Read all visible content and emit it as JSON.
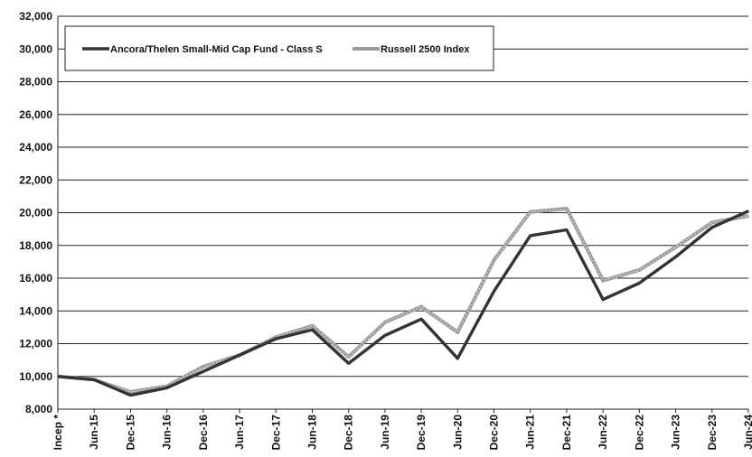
{
  "chart_data": {
    "type": "line",
    "title": "",
    "xlabel": "",
    "ylabel": "",
    "categories": [
      "Incep *",
      "Jun-15",
      "Dec-15",
      "Jun-16",
      "Dec-16",
      "Jun-17",
      "Dec-17",
      "Jun-18",
      "Dec-18",
      "Jun-19",
      "Dec-19",
      "Jun-20",
      "Dec-20",
      "Jun-21",
      "Dec-21",
      "Jun-22",
      "Dec-22",
      "Jun-23",
      "Dec-23",
      "Jun-24"
    ],
    "ylim": [
      8000,
      32000
    ],
    "yticks": [
      "8,000",
      "10,000",
      "12,000",
      "14,000",
      "16,000",
      "18,000",
      "20,000",
      "22,000",
      "24,000",
      "26,000",
      "28,000",
      "30,000",
      "32,000"
    ],
    "grid": true,
    "legend_position": "top-left",
    "series": [
      {
        "name": "Ancora/Thelen Small-Mid Cap Fund - Class S",
        "color": "#333333",
        "values": [
          10000,
          9800,
          8850,
          9300,
          10300,
          11300,
          12300,
          12850,
          10800,
          12500,
          13500,
          11100,
          15200,
          18600,
          18950,
          14700,
          15700,
          17300,
          19100,
          20100
        ]
      },
      {
        "name": "Russell 2500 Index",
        "color": "#a0a0a0",
        "values": [
          10000,
          9800,
          9050,
          9400,
          10600,
          11300,
          12400,
          13100,
          11200,
          13300,
          14250,
          12700,
          17100,
          20050,
          20250,
          15850,
          16500,
          17900,
          19400,
          19800
        ]
      }
    ]
  }
}
